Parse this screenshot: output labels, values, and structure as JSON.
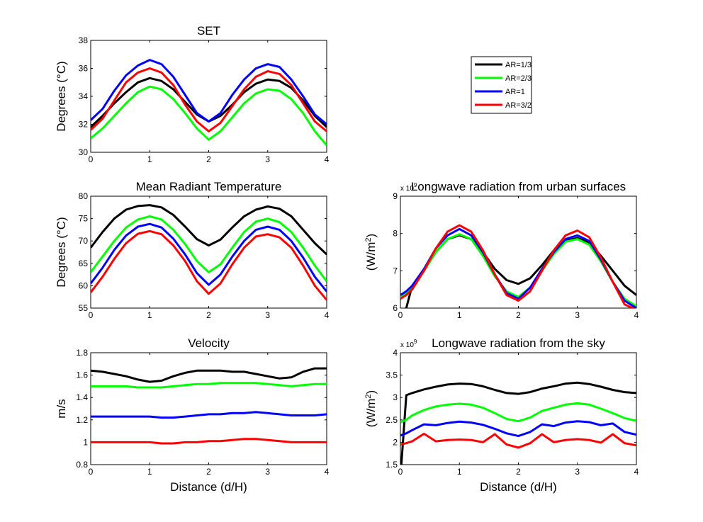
{
  "chart_data": [
    {
      "type": "line",
      "title": "SET",
      "xlabel": "",
      "ylabel": "Degrees (°C)",
      "xlim": [
        0,
        4
      ],
      "ylim": [
        30,
        38
      ],
      "xticks": [
        "0",
        "1",
        "2",
        "3",
        "4"
      ],
      "yticks": [
        "30",
        "32",
        "34",
        "36",
        "38"
      ],
      "grid": false,
      "x": [
        0,
        0.2,
        0.4,
        0.6,
        0.8,
        1.0,
        1.2,
        1.4,
        1.6,
        1.8,
        2.0,
        2.2,
        2.4,
        2.6,
        2.8,
        3.0,
        3.2,
        3.4,
        3.6,
        3.8,
        4.0
      ],
      "series": [
        {
          "name": "AR=1/3",
          "color": "#000000",
          "values": [
            31.8,
            32.6,
            33.5,
            34.3,
            35.0,
            35.3,
            35.1,
            34.5,
            33.6,
            32.7,
            32.2,
            32.6,
            33.4,
            34.3,
            34.9,
            35.2,
            35.1,
            34.6,
            33.7,
            32.6,
            31.8
          ]
        },
        {
          "name": "AR=2/3",
          "color": "#00ff00",
          "values": [
            31.0,
            31.7,
            32.6,
            33.5,
            34.3,
            34.7,
            34.5,
            33.8,
            32.8,
            31.7,
            30.9,
            31.5,
            32.5,
            33.5,
            34.2,
            34.5,
            34.4,
            33.8,
            32.8,
            31.5,
            30.5
          ]
        },
        {
          "name": "AR=1",
          "color": "#0000ff",
          "values": [
            32.3,
            33.1,
            34.4,
            35.5,
            36.2,
            36.6,
            36.3,
            35.4,
            34.1,
            32.8,
            32.2,
            32.8,
            34.1,
            35.2,
            36.0,
            36.3,
            36.1,
            35.2,
            34.0,
            32.7,
            32.0
          ]
        },
        {
          "name": "AR=3/2",
          "color": "#ff0000",
          "values": [
            31.6,
            32.4,
            33.7,
            35.0,
            35.7,
            36.0,
            35.7,
            34.8,
            33.4,
            32.2,
            31.5,
            32.1,
            33.3,
            34.5,
            35.4,
            35.8,
            35.6,
            34.8,
            33.5,
            32.2,
            31.5
          ]
        }
      ]
    },
    {
      "type": "line",
      "title": "Mean Radiant Temperature",
      "xlabel": "",
      "ylabel": "Degrees (°C)",
      "xlim": [
        0,
        4
      ],
      "ylim": [
        55,
        80
      ],
      "xticks": [
        "0",
        "1",
        "2",
        "3",
        "4"
      ],
      "yticks": [
        "55",
        "60",
        "65",
        "70",
        "75",
        "80"
      ],
      "grid": false,
      "x": [
        0,
        0.2,
        0.4,
        0.6,
        0.8,
        1.0,
        1.2,
        1.4,
        1.6,
        1.8,
        2.0,
        2.2,
        2.4,
        2.6,
        2.8,
        3.0,
        3.2,
        3.4,
        3.6,
        3.8,
        4.0
      ],
      "series": [
        {
          "name": "AR=1/3",
          "color": "#000000",
          "values": [
            68.5,
            72.0,
            75.0,
            77.0,
            77.8,
            78.0,
            77.5,
            75.8,
            73.2,
            70.4,
            69.0,
            70.3,
            73.0,
            75.5,
            77.0,
            77.7,
            77.2,
            75.5,
            72.5,
            69.5,
            67.0
          ]
        },
        {
          "name": "AR=2/3",
          "color": "#00ff00",
          "values": [
            63.0,
            66.5,
            70.0,
            73.0,
            74.8,
            75.5,
            74.8,
            72.5,
            69.3,
            65.5,
            63.0,
            64.8,
            68.5,
            72.0,
            74.3,
            75.0,
            74.2,
            72.0,
            68.5,
            64.5,
            61.0
          ]
        },
        {
          "name": "AR=1",
          "color": "#0000ff",
          "values": [
            60.5,
            64.0,
            68.0,
            71.2,
            73.2,
            73.8,
            73.0,
            70.5,
            67.0,
            62.8,
            60.2,
            62.5,
            66.5,
            70.0,
            72.5,
            73.2,
            72.5,
            70.0,
            66.3,
            62.0,
            58.7
          ]
        },
        {
          "name": "AR=3/2",
          "color": "#ff0000",
          "values": [
            58.5,
            62.0,
            66.0,
            69.5,
            71.6,
            72.2,
            71.5,
            69.0,
            65.5,
            61.0,
            58.2,
            60.5,
            64.8,
            68.5,
            71.0,
            71.5,
            70.8,
            68.5,
            64.5,
            60.0,
            56.8
          ]
        }
      ]
    },
    {
      "type": "line",
      "title": "Velocity",
      "xlabel": "Distance (d/H)",
      "ylabel": "m/s",
      "xlim": [
        0,
        4
      ],
      "ylim": [
        0.8,
        1.8
      ],
      "xticks": [
        "0",
        "1",
        "2",
        "3",
        "4"
      ],
      "yticks": [
        "0.8",
        "1",
        "1.2",
        "1.4",
        "1.6",
        "1.8"
      ],
      "grid": false,
      "x": [
        0,
        0.2,
        0.4,
        0.6,
        0.8,
        1.0,
        1.2,
        1.4,
        1.6,
        1.8,
        2.0,
        2.2,
        2.4,
        2.6,
        2.8,
        3.0,
        3.2,
        3.4,
        3.6,
        3.8,
        4.0
      ],
      "series": [
        {
          "name": "AR=1/3",
          "color": "#000000",
          "values": [
            1.64,
            1.63,
            1.61,
            1.59,
            1.56,
            1.54,
            1.55,
            1.59,
            1.62,
            1.64,
            1.64,
            1.64,
            1.63,
            1.63,
            1.61,
            1.59,
            1.57,
            1.58,
            1.63,
            1.66,
            1.66
          ]
        },
        {
          "name": "AR=2/3",
          "color": "#00ff00",
          "values": [
            1.5,
            1.5,
            1.5,
            1.5,
            1.49,
            1.49,
            1.49,
            1.5,
            1.51,
            1.52,
            1.52,
            1.53,
            1.53,
            1.53,
            1.53,
            1.52,
            1.51,
            1.5,
            1.51,
            1.52,
            1.52
          ]
        },
        {
          "name": "AR=1",
          "color": "#0000ff",
          "values": [
            1.23,
            1.23,
            1.23,
            1.23,
            1.23,
            1.23,
            1.22,
            1.22,
            1.23,
            1.24,
            1.25,
            1.25,
            1.26,
            1.26,
            1.27,
            1.26,
            1.25,
            1.24,
            1.24,
            1.24,
            1.25
          ]
        },
        {
          "name": "AR=3/2",
          "color": "#ff0000",
          "values": [
            1.0,
            1.0,
            1.0,
            1.0,
            1.0,
            1.0,
            0.99,
            0.99,
            1.0,
            1.0,
            1.01,
            1.01,
            1.02,
            1.03,
            1.03,
            1.02,
            1.01,
            1.0,
            1.0,
            1.0,
            1.0
          ]
        }
      ]
    },
    {
      "type": "line",
      "title": "Longwave radiation from urban surfaces",
      "xlabel": "",
      "ylabel": "(W/m2)",
      "ylabel_parts": [
        "(W/m",
        "2",
        ")"
      ],
      "exponent_base": "x 10",
      "exponent": "9",
      "xlim": [
        0,
        4
      ],
      "ylim": [
        6,
        9
      ],
      "xticks": [
        "0",
        "1",
        "2",
        "3",
        "4"
      ],
      "yticks": [
        "6",
        "7",
        "8",
        "9"
      ],
      "grid": false,
      "x": [
        0,
        0.1,
        0.2,
        0.4,
        0.6,
        0.8,
        1.0,
        1.2,
        1.4,
        1.6,
        1.8,
        2.0,
        2.2,
        2.4,
        2.6,
        2.8,
        3.0,
        3.2,
        3.4,
        3.6,
        3.8,
        4.0
      ],
      "series": [
        {
          "name": "AR=1/3",
          "color": "#000000",
          "values": [
            5.5,
            6.0,
            6.6,
            7.0,
            7.5,
            7.85,
            7.95,
            7.85,
            7.5,
            7.05,
            6.75,
            6.65,
            6.8,
            7.15,
            7.55,
            7.8,
            7.88,
            7.75,
            7.4,
            7.0,
            6.6,
            6.35
          ]
        },
        {
          "name": "AR=2/3",
          "color": "#00ff00",
          "values": [
            6.3,
            6.4,
            6.6,
            7.0,
            7.5,
            7.85,
            7.98,
            7.85,
            7.4,
            6.85,
            6.45,
            6.3,
            6.55,
            7.0,
            7.45,
            7.78,
            7.85,
            7.7,
            7.25,
            6.7,
            6.25,
            6.05
          ]
        },
        {
          "name": "AR=1",
          "color": "#0000ff",
          "values": [
            6.35,
            6.45,
            6.6,
            7.05,
            7.6,
            7.95,
            8.12,
            7.95,
            7.5,
            6.9,
            6.4,
            6.25,
            6.55,
            7.05,
            7.5,
            7.85,
            7.95,
            7.8,
            7.3,
            6.7,
            6.2,
            6.0
          ]
        },
        {
          "name": "AR=3/2",
          "color": "#ff0000",
          "values": [
            6.25,
            6.35,
            6.5,
            7.0,
            7.6,
            8.05,
            8.22,
            8.05,
            7.55,
            6.9,
            6.35,
            6.2,
            6.45,
            7.0,
            7.55,
            7.95,
            8.08,
            7.9,
            7.35,
            6.7,
            6.1,
            5.95
          ]
        }
      ]
    },
    {
      "type": "line",
      "title": "Longwave radiation from the sky",
      "xlabel": "Distance (d/H)",
      "ylabel": "(W/m2)",
      "ylabel_parts": [
        "(W/m",
        "2",
        ")"
      ],
      "exponent_base": "x 10",
      "exponent": "9",
      "xlim": [
        0,
        4
      ],
      "ylim": [
        1.5,
        4
      ],
      "xticks": [
        "0",
        "1",
        "2",
        "3",
        "4"
      ],
      "yticks": [
        "1.5",
        "2",
        "2.5",
        "3",
        "3.5",
        "4"
      ],
      "grid": false,
      "x": [
        0,
        0.1,
        0.2,
        0.4,
        0.6,
        0.8,
        1.0,
        1.2,
        1.4,
        1.6,
        1.8,
        2.0,
        2.2,
        2.4,
        2.6,
        2.8,
        3.0,
        3.2,
        3.4,
        3.6,
        3.8,
        4.0
      ],
      "series": [
        {
          "name": "AR=1/3",
          "color": "#000000",
          "values": [
            1.2,
            3.05,
            3.1,
            3.18,
            3.24,
            3.29,
            3.31,
            3.3,
            3.25,
            3.17,
            3.1,
            3.08,
            3.12,
            3.2,
            3.25,
            3.31,
            3.33,
            3.3,
            3.24,
            3.17,
            3.12,
            3.1
          ]
        },
        {
          "name": "AR=2/3",
          "color": "#00ff00",
          "values": [
            2.45,
            2.5,
            2.6,
            2.72,
            2.8,
            2.84,
            2.86,
            2.84,
            2.77,
            2.65,
            2.52,
            2.47,
            2.55,
            2.7,
            2.77,
            2.84,
            2.87,
            2.84,
            2.75,
            2.65,
            2.54,
            2.48
          ]
        },
        {
          "name": "AR=1",
          "color": "#0000ff",
          "values": [
            2.15,
            2.2,
            2.27,
            2.4,
            2.38,
            2.43,
            2.46,
            2.44,
            2.39,
            2.3,
            2.2,
            2.14,
            2.23,
            2.4,
            2.36,
            2.44,
            2.47,
            2.45,
            2.38,
            2.42,
            2.23,
            2.17
          ]
        },
        {
          "name": "AR=3/2",
          "color": "#ff0000",
          "values": [
            1.95,
            1.98,
            2.02,
            2.19,
            2.02,
            2.05,
            2.06,
            2.05,
            2.0,
            2.18,
            1.95,
            1.88,
            1.98,
            2.18,
            2.0,
            2.05,
            2.07,
            2.05,
            1.99,
            2.18,
            1.98,
            1.93
          ]
        }
      ]
    }
  ],
  "legend": {
    "placement": "top-right",
    "entries": [
      {
        "label": "AR=1/3",
        "color": "#000000"
      },
      {
        "label": "AR=2/3",
        "color": "#00ff00"
      },
      {
        "label": "AR=1",
        "color": "#0000ff"
      },
      {
        "label": "AR=3/2",
        "color": "#ff0000"
      }
    ]
  }
}
